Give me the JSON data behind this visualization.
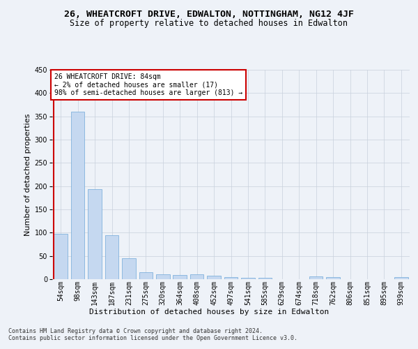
{
  "title": "26, WHEATCROFT DRIVE, EDWALTON, NOTTINGHAM, NG12 4JF",
  "subtitle": "Size of property relative to detached houses in Edwalton",
  "xlabel": "Distribution of detached houses by size in Edwalton",
  "ylabel": "Number of detached properties",
  "categories": [
    "54sqm",
    "98sqm",
    "143sqm",
    "187sqm",
    "231sqm",
    "275sqm",
    "320sqm",
    "364sqm",
    "408sqm",
    "452sqm",
    "497sqm",
    "541sqm",
    "585sqm",
    "629sqm",
    "674sqm",
    "718sqm",
    "762sqm",
    "806sqm",
    "851sqm",
    "895sqm",
    "939sqm"
  ],
  "values": [
    97,
    360,
    193,
    95,
    45,
    15,
    11,
    9,
    10,
    7,
    5,
    3,
    3,
    0,
    0,
    6,
    5,
    0,
    0,
    0,
    4
  ],
  "bar_color": "#c5d8f0",
  "bar_edge_color": "#6fa8d8",
  "highlight_color": "#cc0000",
  "annotation_line1": "26 WHEATCROFT DRIVE: 84sqm",
  "annotation_line2": "← 2% of detached houses are smaller (17)",
  "annotation_line3": "98% of semi-detached houses are larger (813) →",
  "ylim": [
    0,
    450
  ],
  "yticks": [
    0,
    50,
    100,
    150,
    200,
    250,
    300,
    350,
    400,
    450
  ],
  "background_color": "#eef2f8",
  "footer_text": "Contains HM Land Registry data © Crown copyright and database right 2024.\nContains public sector information licensed under the Open Government Licence v3.0.",
  "title_fontsize": 9.5,
  "subtitle_fontsize": 8.5,
  "ylabel_fontsize": 8,
  "xlabel_fontsize": 8,
  "tick_fontsize": 7,
  "annot_fontsize": 7,
  "footer_fontsize": 6
}
